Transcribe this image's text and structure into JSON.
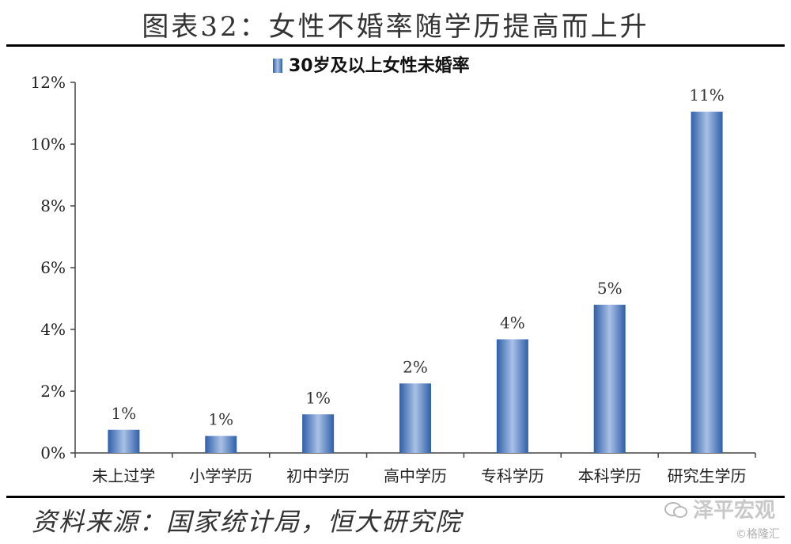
{
  "page": {
    "title": "图表32：女性不婚率随学历提高而上升",
    "source": "资料来源：国家统计局，恒大研究院",
    "watermark": "泽平宏观",
    "watermark2": "©格隆汇"
  },
  "colors": {
    "bar_dark": "#2f5fa8",
    "bar_light": "#a9c1e6",
    "axis": "#444444"
  },
  "chart_data": {
    "type": "bar",
    "title": "",
    "xlabel": "",
    "ylabel": "",
    "legend": {
      "position": "top-center"
    },
    "categories": [
      "未上过学",
      "小学学历",
      "初中学历",
      "高中学历",
      "专科学历",
      "本科学历",
      "研究生学历"
    ],
    "series": [
      {
        "name": "30岁及以上女性未婚率",
        "values": [
          0.75,
          0.55,
          1.25,
          2.25,
          3.68,
          4.8,
          11.05
        ],
        "data_labels": [
          "1%",
          "1%",
          "1%",
          "2%",
          "4%",
          "5%",
          "11%"
        ]
      }
    ],
    "ylim": [
      0,
      12
    ],
    "yticks": [
      0,
      2,
      4,
      6,
      8,
      10,
      12
    ],
    "ytick_labels": [
      "0%",
      "2%",
      "4%",
      "6%",
      "8%",
      "10%",
      "12%"
    ],
    "grid": false
  }
}
